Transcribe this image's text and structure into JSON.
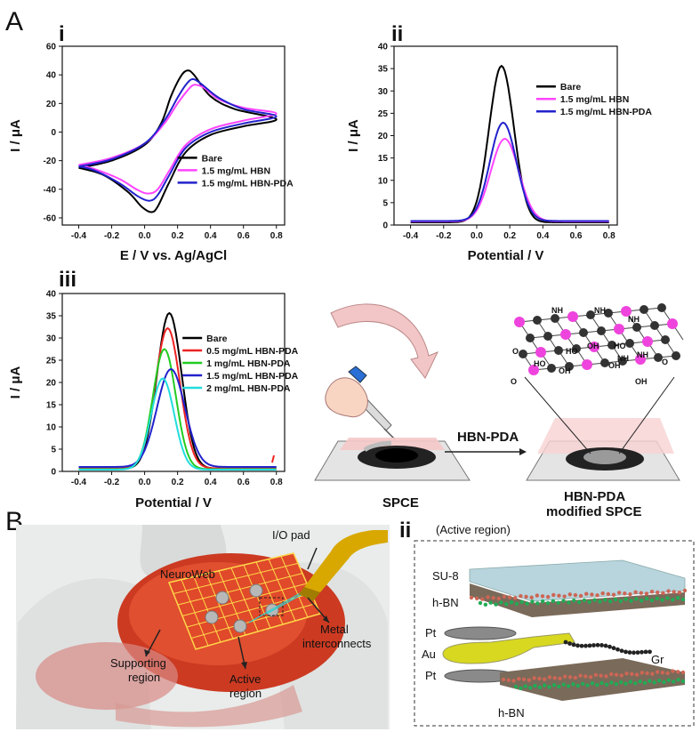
{
  "panel_labels": {
    "A": "A",
    "B": "B",
    "Ai": "i",
    "Aii": "ii",
    "Aiii": "iii",
    "Bi": "i",
    "Bii": "ii"
  },
  "colors": {
    "bare": "#000000",
    "hbn": "#ff44ff",
    "hbn_pda": "#2222cc",
    "red": "#ee2222",
    "green": "#22cc22",
    "cyan": "#22dddd"
  },
  "chart_data": [
    {
      "id": "cv",
      "type": "line",
      "xlabel": "E / V vs. Ag/AgCl",
      "ylabel": "I / μA",
      "xlim": [
        -0.5,
        0.85
      ],
      "ylim": [
        -65,
        60
      ],
      "xticks": [
        "-0.4",
        "-0.2",
        "0.0",
        "0.2",
        "0.4",
        "0.6",
        "0.8"
      ],
      "xtick_values": [
        -0.4,
        -0.2,
        0.0,
        0.2,
        0.4,
        0.6,
        0.8
      ],
      "yticks": [
        "-60",
        "-40",
        "-20",
        "0",
        "20",
        "40",
        "60"
      ],
      "ytick_values": [
        -60,
        -40,
        -20,
        0,
        20,
        40,
        60
      ],
      "legend_position": "lower-right",
      "series": [
        {
          "name": "Bare",
          "color": "#000000",
          "anodic": [
            [
              -0.4,
              -25
            ],
            [
              -0.2,
              -20
            ],
            [
              0.0,
              -9
            ],
            [
              0.1,
              6
            ],
            [
              0.16,
              25
            ],
            [
              0.22,
              39
            ],
            [
              0.26,
              43
            ],
            [
              0.3,
              40
            ],
            [
              0.4,
              25
            ],
            [
              0.55,
              16
            ],
            [
              0.8,
              9
            ]
          ],
          "cathodic": [
            [
              0.8,
              9
            ],
            [
              0.6,
              4
            ],
            [
              0.4,
              -2
            ],
            [
              0.25,
              -14
            ],
            [
              0.15,
              -35
            ],
            [
              0.08,
              -52
            ],
            [
              0.04,
              -56
            ],
            [
              -0.02,
              -52
            ],
            [
              -0.1,
              -42
            ],
            [
              -0.25,
              -30
            ],
            [
              -0.4,
              -25
            ]
          ]
        },
        {
          "name": "1.5 mg/mL HBN",
          "color": "#ff44ff",
          "anodic": [
            [
              -0.4,
              -23
            ],
            [
              -0.2,
              -18
            ],
            [
              0.0,
              -8
            ],
            [
              0.12,
              6
            ],
            [
              0.2,
              20
            ],
            [
              0.26,
              29
            ],
            [
              0.3,
              33
            ],
            [
              0.36,
              31
            ],
            [
              0.45,
              23
            ],
            [
              0.6,
              17
            ],
            [
              0.8,
              13
            ]
          ],
          "cathodic": [
            [
              0.8,
              13
            ],
            [
              0.6,
              8
            ],
            [
              0.4,
              2
            ],
            [
              0.25,
              -9
            ],
            [
              0.15,
              -27
            ],
            [
              0.08,
              -40
            ],
            [
              0.02,
              -43
            ],
            [
              -0.05,
              -40
            ],
            [
              -0.15,
              -33
            ],
            [
              -0.3,
              -26
            ],
            [
              -0.4,
              -23
            ]
          ]
        },
        {
          "name": "1.5 mg/mL HBN-PDA",
          "color": "#2222cc",
          "anodic": [
            [
              -0.4,
              -24
            ],
            [
              -0.2,
              -19
            ],
            [
              0.0,
              -8
            ],
            [
              0.12,
              8
            ],
            [
              0.2,
              24
            ],
            [
              0.25,
              33
            ],
            [
              0.29,
              37
            ],
            [
              0.34,
              34
            ],
            [
              0.45,
              24
            ],
            [
              0.6,
              16
            ],
            [
              0.8,
              11
            ]
          ],
          "cathodic": [
            [
              0.8,
              11
            ],
            [
              0.6,
              6
            ],
            [
              0.4,
              0
            ],
            [
              0.25,
              -11
            ],
            [
              0.15,
              -30
            ],
            [
              0.08,
              -44
            ],
            [
              0.03,
              -48
            ],
            [
              -0.04,
              -45
            ],
            [
              -0.15,
              -36
            ],
            [
              -0.3,
              -27
            ],
            [
              -0.4,
              -24
            ]
          ]
        }
      ]
    },
    {
      "id": "dpv1",
      "type": "line",
      "xlabel": "Potential / V",
      "ylabel": "I / μA",
      "xlim": [
        -0.5,
        0.85
      ],
      "ylim": [
        0,
        40
      ],
      "xticks": [
        "-0.4",
        "-0.2",
        "0.0",
        "0.2",
        "0.4",
        "0.6",
        "0.8"
      ],
      "xtick_values": [
        -0.4,
        -0.2,
        0.0,
        0.2,
        0.4,
        0.6,
        0.8
      ],
      "yticks": [
        "0",
        "5",
        "10",
        "15",
        "20",
        "25",
        "30",
        "35",
        "40"
      ],
      "ytick_values": [
        0,
        5,
        10,
        15,
        20,
        25,
        30,
        35,
        40
      ],
      "legend_position": "upper-right",
      "series": [
        {
          "name": "Bare",
          "color": "#000000",
          "peak_x": 0.15,
          "peak_y": 35,
          "width": 0.075,
          "base": 0.6
        },
        {
          "name": "1.5 mg/mL HBN",
          "color": "#ff44ff",
          "peak_x": 0.17,
          "peak_y": 18.5,
          "width": 0.085,
          "base": 0.8
        },
        {
          "name": "1.5 mg/mL HBN-PDA",
          "color": "#2222cc",
          "peak_x": 0.16,
          "peak_y": 22,
          "width": 0.08,
          "base": 0.9
        }
      ]
    },
    {
      "id": "dpv2",
      "type": "line",
      "xlabel": "Potential / V",
      "ylabel": "I / μA",
      "xlim": [
        -0.5,
        0.85
      ],
      "ylim": [
        0,
        40
      ],
      "xticks": [
        "-0.4",
        "-0.2",
        "0.0",
        "0.2",
        "0.4",
        "0.6",
        "0.8"
      ],
      "xtick_values": [
        -0.4,
        -0.2,
        0.0,
        0.2,
        0.4,
        0.6,
        0.8
      ],
      "yticks": [
        "0",
        "5",
        "10",
        "15",
        "20",
        "25",
        "30",
        "35",
        "40"
      ],
      "ytick_values": [
        0,
        5,
        10,
        15,
        20,
        25,
        30,
        35,
        40
      ],
      "legend_position": "right",
      "series": [
        {
          "name": "Bare",
          "color": "#000000",
          "peak_x": 0.15,
          "peak_y": 35,
          "width": 0.075,
          "base": 0.6
        },
        {
          "name": "0.5 mg/mL HBN-PDA",
          "color": "#ee2222",
          "peak_x": 0.14,
          "peak_y": 31.5,
          "width": 0.075,
          "base": 0.7
        },
        {
          "name": "1 mg/mL HBN-PDA",
          "color": "#22cc22",
          "peak_x": 0.12,
          "peak_y": 27,
          "width": 0.07,
          "base": 0.5
        },
        {
          "name": "1.5 mg/mL HBN-PDA",
          "color": "#2222cc",
          "peak_x": 0.16,
          "peak_y": 22,
          "width": 0.085,
          "base": 1.0
        },
        {
          "name": "2 mg/mL HBN-PDA",
          "color": "#22dddd",
          "peak_x": 0.11,
          "peak_y": 20.5,
          "width": 0.07,
          "base": 0.4
        }
      ]
    }
  ],
  "schematic_A": {
    "step_label": "HBN-PDA",
    "left_caption": "SPCE",
    "right_caption_line1": "HBN-PDA",
    "right_caption_line2": "modified SPCE",
    "chem_labels": [
      "NH",
      "NH",
      "NH",
      "HO",
      "OH",
      "HO",
      "OH",
      "HO",
      "OH",
      "NH",
      "NH",
      "O",
      "O",
      "O",
      "OH"
    ]
  },
  "schematic_Bi": {
    "io_pad": "I/O pad",
    "neuroweb": "NeuroWeb",
    "metal_line1": "Metal",
    "metal_line2": "interconnects",
    "supporting_line1": "Supporting",
    "supporting_line2": "region",
    "active_line1": "Active",
    "active_line2": "region"
  },
  "schematic_Bii": {
    "title": "(Active region)",
    "su8": "SU-8",
    "hbn_top": "h-BN",
    "pt_top": "Pt",
    "au": "Au",
    "pt_bottom": "Pt",
    "gr": "Gr",
    "hbn_bottom": "h-BN"
  }
}
